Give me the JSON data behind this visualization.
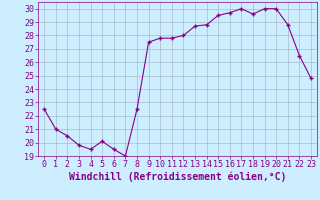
{
  "x": [
    0,
    1,
    2,
    3,
    4,
    5,
    6,
    7,
    8,
    9,
    10,
    11,
    12,
    13,
    14,
    15,
    16,
    17,
    18,
    19,
    20,
    21,
    22,
    23
  ],
  "y": [
    22.5,
    21.0,
    20.5,
    19.8,
    19.5,
    20.1,
    19.5,
    19.0,
    22.5,
    27.5,
    27.8,
    27.8,
    28.0,
    28.7,
    28.8,
    29.5,
    29.7,
    30.0,
    29.6,
    30.0,
    30.0,
    28.8,
    26.5,
    24.8
  ],
  "line_color": "#880088",
  "marker": "+",
  "marker_size": 3,
  "bg_color": "#cceeff",
  "grid_color": "#aabbcc",
  "xlabel": "Windchill (Refroidissement éolien,°C)",
  "ylabel": "",
  "xlim": [
    -0.5,
    23.5
  ],
  "ylim": [
    19,
    30.5
  ],
  "yticks": [
    19,
    20,
    21,
    22,
    23,
    24,
    25,
    26,
    27,
    28,
    29,
    30
  ],
  "xticks": [
    0,
    1,
    2,
    3,
    4,
    5,
    6,
    7,
    8,
    9,
    10,
    11,
    12,
    13,
    14,
    15,
    16,
    17,
    18,
    19,
    20,
    21,
    22,
    23
  ],
  "xlabel_fontsize": 7,
  "tick_fontsize": 6,
  "tick_color": "#880088",
  "spine_color": "#880088"
}
